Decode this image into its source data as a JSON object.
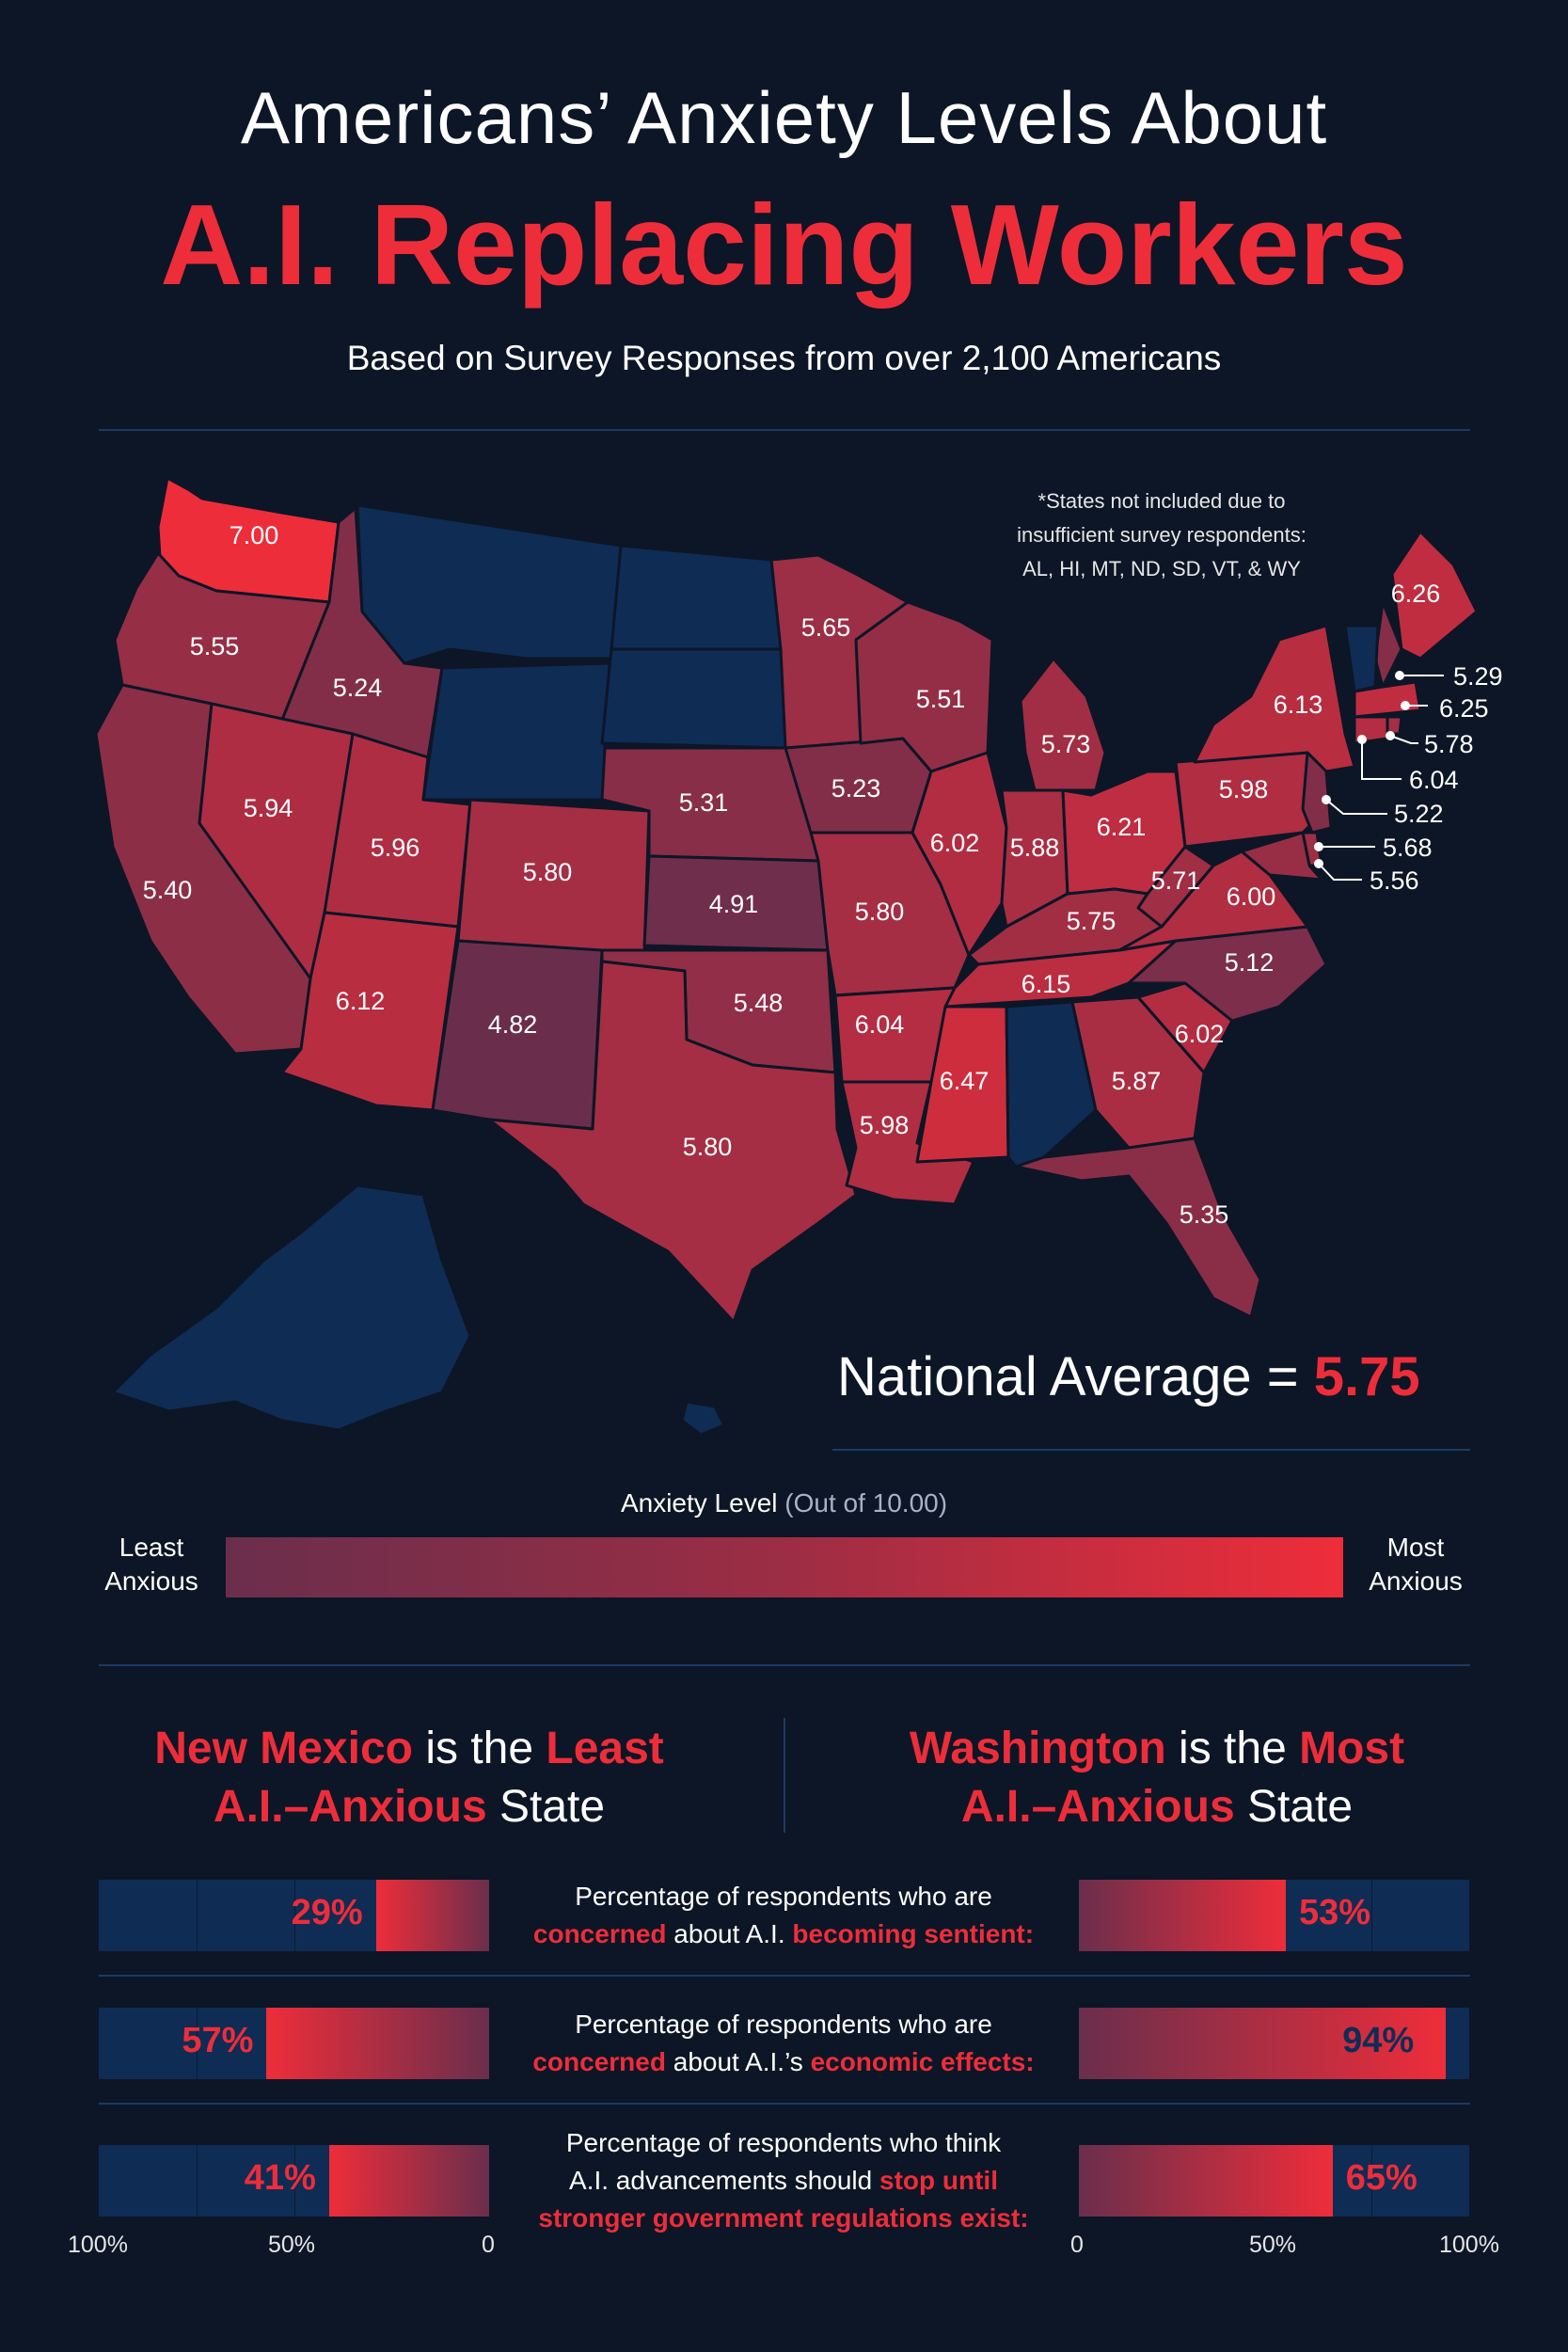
{
  "header": {
    "title_line1": "Americans’ Anxiety Levels About",
    "title_line2": "A.I. Replacing Workers",
    "subtitle": "Based on Survey Responses from over 2,100 Americans"
  },
  "note": {
    "line1": "*States not included due to",
    "line2": "insufficient survey respondents:",
    "line3": "AL, HI, MT, ND, SD, VT, & WY"
  },
  "national_average": {
    "label": "National Average = ",
    "value": "5.75"
  },
  "legend": {
    "title": "Anxiety Level",
    "scale_note": "(Out of 10.00)",
    "least_line1": "Least",
    "least_line2": "Anxious",
    "most_line1": "Most",
    "most_line2": "Anxious",
    "color_low": "#6a2e4c",
    "color_high": "#ee2d3a"
  },
  "colors": {
    "accent": "#ee2d3a",
    "excluded": "#0f2c55",
    "background": "#0c1626"
  },
  "comparison": {
    "least": {
      "state": "New Mexico",
      "is_the": " is the ",
      "word": "Least",
      "anxious": "A.I.–Anxious",
      "suffix": " State"
    },
    "most": {
      "state": "Washington",
      "is_the": " is the ",
      "word": "Most",
      "anxious": "A.I.–Anxious",
      "suffix": " State"
    },
    "questions": [
      {
        "line1": "Percentage of respondents who are",
        "parts": [
          {
            "t": "concerned",
            "red": true
          },
          {
            "t": " about A.I. ",
            "red": false
          },
          {
            "t": "becoming sentient:",
            "red": true
          }
        ],
        "parts2": [],
        "left_label": "29%",
        "right_label": "53%",
        "left_value": 29,
        "right_value": 53
      },
      {
        "line1": "Percentage of respondents who are",
        "parts": [
          {
            "t": "concerned",
            "red": true
          },
          {
            "t": " about A.I.’s ",
            "red": false
          },
          {
            "t": "economic effects:",
            "red": true
          }
        ],
        "parts2": [],
        "left_label": "57%",
        "right_label": "94%",
        "left_value": 57,
        "right_value": 94
      },
      {
        "line1": "Percentage of respondents who think",
        "parts": [
          {
            "t": "A.I. advancements should ",
            "red": false
          },
          {
            "t": "stop until",
            "red": true
          }
        ],
        "parts2": [
          {
            "t": "stronger government regulations exist:",
            "red": true
          }
        ],
        "left_label": "41%",
        "right_label": "65%",
        "left_value": 41,
        "right_value": 65
      }
    ],
    "left_axis": [
      "100%",
      "50%",
      "0"
    ],
    "right_axis": [
      "0",
      "50%",
      "100%"
    ]
  },
  "chart_data": {
    "type": "choropleth",
    "title": "Americans’ Anxiety Levels About A.I. Replacing Workers",
    "value_range": [
      0,
      10
    ],
    "states": [
      {
        "state": "WA",
        "value": 7.0,
        "label": "7.00"
      },
      {
        "state": "OR",
        "value": 5.55,
        "label": "5.55"
      },
      {
        "state": "ID",
        "value": 5.24,
        "label": "5.24"
      },
      {
        "state": "CA",
        "value": 5.4,
        "label": "5.40"
      },
      {
        "state": "NV",
        "value": 5.94,
        "label": "5.94"
      },
      {
        "state": "UT",
        "value": 5.96,
        "label": "5.96"
      },
      {
        "state": "AZ",
        "value": 6.12,
        "label": "6.12"
      },
      {
        "state": "CO",
        "value": 5.8,
        "label": "5.80"
      },
      {
        "state": "NM",
        "value": 4.82,
        "label": "4.82"
      },
      {
        "state": "NE",
        "value": 5.31,
        "label": "5.31"
      },
      {
        "state": "KS",
        "value": 4.91,
        "label": "4.91"
      },
      {
        "state": "OK",
        "value": 5.48,
        "label": "5.48"
      },
      {
        "state": "TX",
        "value": 5.8,
        "label": "5.80"
      },
      {
        "state": "MN",
        "value": 5.65,
        "label": "5.65"
      },
      {
        "state": "IA",
        "value": 5.23,
        "label": "5.23"
      },
      {
        "state": "MO",
        "value": 5.8,
        "label": "5.80"
      },
      {
        "state": "AR",
        "value": 6.04,
        "label": "6.04"
      },
      {
        "state": "LA",
        "value": 5.98,
        "label": "5.98"
      },
      {
        "state": "WI",
        "value": 5.51,
        "label": "5.51"
      },
      {
        "state": "IL",
        "value": 6.02,
        "label": "6.02"
      },
      {
        "state": "MI",
        "value": 5.73,
        "label": "5.73"
      },
      {
        "state": "IN",
        "value": 5.88,
        "label": "5.88"
      },
      {
        "state": "OH",
        "value": 6.21,
        "label": "6.21"
      },
      {
        "state": "KY",
        "value": 5.75,
        "label": "5.75"
      },
      {
        "state": "TN",
        "value": 6.15,
        "label": "6.15"
      },
      {
        "state": "MS",
        "value": 6.47,
        "label": "6.47"
      },
      {
        "state": "GA",
        "value": 5.87,
        "label": "5.87"
      },
      {
        "state": "FL",
        "value": 5.35,
        "label": "5.35"
      },
      {
        "state": "SC",
        "value": 6.02,
        "label": "6.02"
      },
      {
        "state": "NC",
        "value": 5.12,
        "label": "5.12"
      },
      {
        "state": "VA",
        "value": 6.0,
        "label": "6.00"
      },
      {
        "state": "WV",
        "value": 5.71,
        "label": "5.71"
      },
      {
        "state": "PA",
        "value": 5.98,
        "label": "5.98"
      },
      {
        "state": "NY",
        "value": 6.13,
        "label": "6.13"
      },
      {
        "state": "ME",
        "value": 6.26,
        "label": "6.26"
      },
      {
        "state": "NH",
        "value": 5.29,
        "label": "5.29"
      },
      {
        "state": "MA",
        "value": 6.25,
        "label": "6.25"
      },
      {
        "state": "RI",
        "value": 5.78,
        "label": "5.78"
      },
      {
        "state": "CT",
        "value": 6.04,
        "label": "6.04"
      },
      {
        "state": "NJ",
        "value": 5.22,
        "label": "5.22"
      },
      {
        "state": "DE",
        "value": 5.68,
        "label": "5.68"
      },
      {
        "state": "MD",
        "value": 5.56,
        "label": "5.56"
      }
    ],
    "excluded": [
      "AL",
      "HI",
      "MT",
      "ND",
      "SD",
      "VT",
      "WY",
      "AK"
    ]
  }
}
